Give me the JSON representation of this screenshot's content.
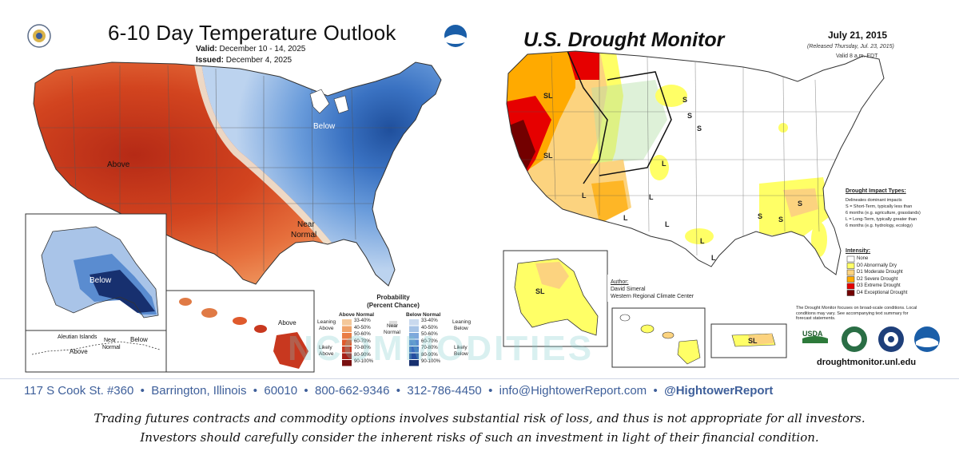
{
  "temperature_outlook": {
    "title": "6-10 Day Temperature Outlook",
    "valid_label": "Valid:",
    "valid_value": "December 10 - 14, 2025",
    "issued_label": "Issued:",
    "issued_value": "December 4, 2025",
    "region_labels": {
      "above": "Above",
      "below": "Below",
      "near": "Near",
      "normal": "Normal",
      "alaska_below": "Below",
      "aleutians_above": "Above",
      "aleutians_near": "Near",
      "aleutians_normal": "Normal",
      "aleutians_below": "Below",
      "aleutians_header": "Aleutian Islands",
      "hawaii_above": "Above"
    },
    "legend": {
      "title_line1": "Probability",
      "title_line2": "(Percent Chance)",
      "above_header": "Above Normal",
      "below_header": "Below Normal",
      "near_label_1": "Near",
      "near_label_2": "Normal",
      "leaning_above_1": "Leaning",
      "leaning_above_2": "Above",
      "likely_above_1": "Likely",
      "likely_above_2": "Above",
      "leaning_below_1": "Leaning",
      "leaning_below_2": "Below",
      "likely_below_1": "Likely",
      "likely_below_2": "Below",
      "above_ranges": [
        "33-40%",
        "40-50%",
        "50-60%",
        "60-70%",
        "70-80%",
        "80-90%",
        "90-100%"
      ],
      "below_ranges": [
        "33-40%",
        "40-50%",
        "50-60%",
        "60-70%",
        "70-80%",
        "80-90%",
        "90-100%"
      ],
      "above_colors": [
        "#f4c89a",
        "#f0a46a",
        "#e97d45",
        "#df5a2c",
        "#c8381f",
        "#a61f17",
        "#7a1010"
      ],
      "below_colors": [
        "#c9d9ee",
        "#a6c3e6",
        "#7ea8dc",
        "#5a8cd0",
        "#3a6cbe",
        "#244ea0",
        "#17306f"
      ]
    }
  },
  "drought_monitor": {
    "title": "U.S. Drought Monitor",
    "date": "July 21, 2015",
    "released": "(Released Thursday, Jul. 23, 2015)",
    "valid_time": "Valid 8 a.m. EDT",
    "impact_types_title": "Drought Impact Types:",
    "impact_lines": [
      "Delineates dominant impacts",
      "S = Short-Term, typically less than",
      "6 months (e.g. agriculture, grasslands)",
      "L = Long-Term, typically greater than",
      "6 months (e.g. hydrology, ecology)"
    ],
    "intensity_title": "Intensity:",
    "intensity_levels": [
      {
        "label": "None",
        "color": "#ffffff"
      },
      {
        "label": "D0 Abnormally Dry",
        "color": "#ffff66"
      },
      {
        "label": "D1 Moderate Drought",
        "color": "#fcd37f"
      },
      {
        "label": "D2 Severe Drought",
        "color": "#ffaa00"
      },
      {
        "label": "D3 Extreme Drought",
        "color": "#e60000"
      },
      {
        "label": "D4 Exceptional Drought",
        "color": "#730000"
      }
    ],
    "note": "The Drought Monitor focuses on broad-scale conditions. Local conditions may vary. See accompanying text summary for forecast statements.",
    "author_label": "Author:",
    "author_name": "David Simeral",
    "author_org": "Western Regional Climate Center",
    "site": "droughtmonitor.unl.edu",
    "logo_usda": "USDA",
    "map_labels": [
      "SL",
      "SL",
      "S",
      "S",
      "S",
      "L",
      "L",
      "L",
      "L",
      "L",
      "S",
      "S",
      "S",
      "L",
      "L",
      "SL",
      "SL"
    ]
  },
  "footer": {
    "contact": "117 S Cook St. #360  •  Barrington, Illinois  •  60010  •  800-662-9346  •  312-786-4450  •  info@HightowerReport.com  •  ",
    "handle": "@HightowerReport",
    "disclaimer_line1": "Trading futures contracts and commodity options involves substantial risk of loss, and thus is not appropriate for all investors.",
    "disclaimer_line2": "Investors should carefully consider the inherent risks of such an investment in light of their financial condition."
  },
  "watermark": "NCOMMODITIES"
}
